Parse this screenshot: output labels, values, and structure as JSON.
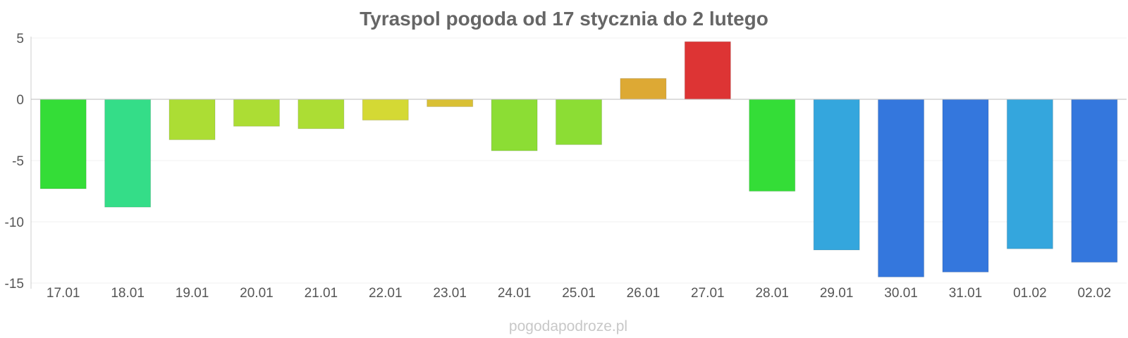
{
  "chart_data": {
    "type": "bar",
    "title": "Tyraspol pogoda od 17 stycznia do 2 lutego",
    "xlabel": "",
    "ylabel": "",
    "ylim": [
      -15,
      5
    ],
    "yticks": [
      "5",
      "0",
      "-5",
      "-10",
      "-15"
    ],
    "grid": true,
    "categories": [
      "17.01",
      "18.01",
      "19.01",
      "20.01",
      "21.01",
      "22.01",
      "23.01",
      "24.01",
      "25.01",
      "26.01",
      "27.01",
      "28.01",
      "29.01",
      "30.01",
      "31.01",
      "01.02",
      "02.02"
    ],
    "values": [
      -7.3,
      -8.8,
      -3.3,
      -2.2,
      -2.4,
      -1.7,
      -0.6,
      -4.2,
      -3.7,
      1.7,
      4.7,
      -7.5,
      -12.3,
      -14.5,
      -14.1,
      -12.2,
      -13.3
    ],
    "colors": [
      "#34dd37",
      "#34dd88",
      "#acdd34",
      "#acdd34",
      "#acdd34",
      "#d4d934",
      "#d9c034",
      "#8cdd34",
      "#8cdd34",
      "#dda934",
      "#dd3434",
      "#34dd37",
      "#34a6dd",
      "#3477dd",
      "#3477dd",
      "#34a6dd",
      "#3477dd"
    ]
  },
  "watermark": "pogodapodroze.pl"
}
